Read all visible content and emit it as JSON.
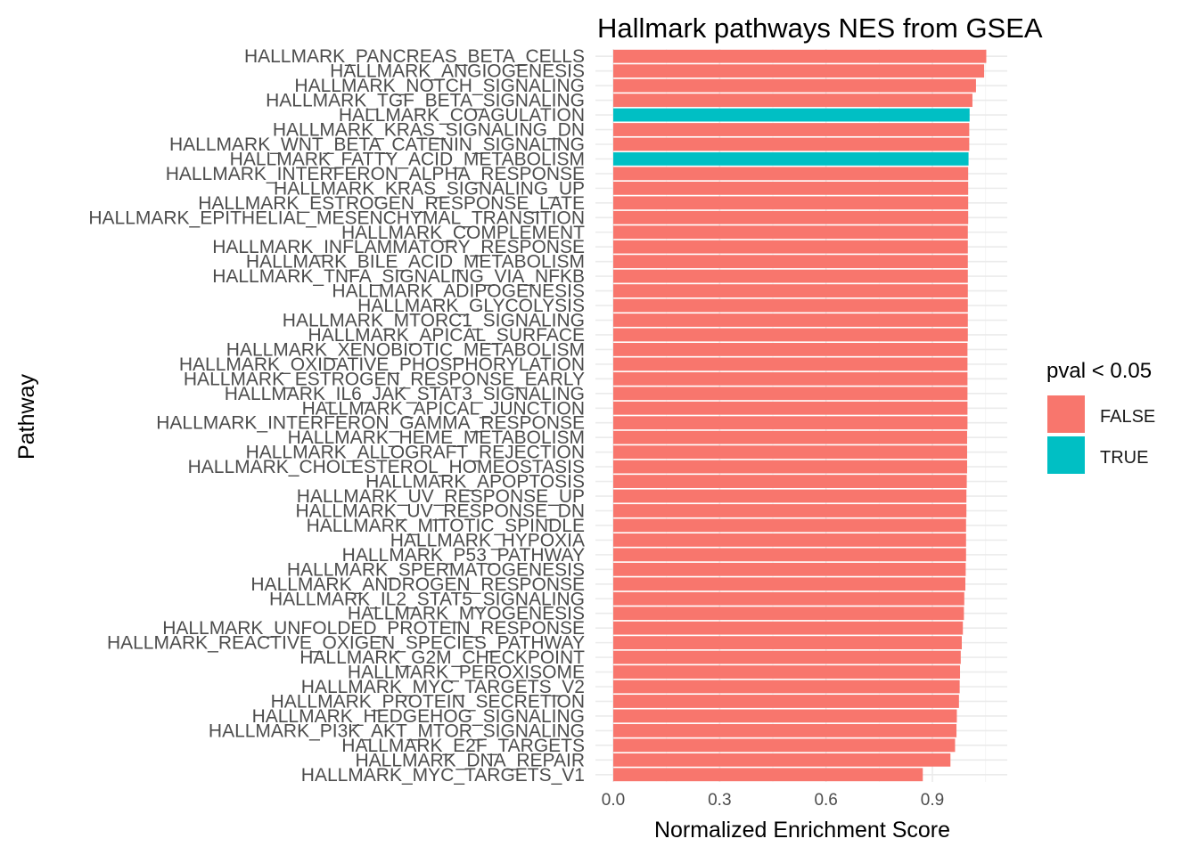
{
  "chart_data": {
    "type": "bar",
    "orientation": "horizontal",
    "title": "Hallmark pathways NES from GSEA",
    "xlabel": "Normalized Enrichment Score",
    "ylabel": "Pathway",
    "xlim": [
      0,
      1.1
    ],
    "xticks": [
      "0.0",
      "0.3",
      "0.6",
      "0.9"
    ],
    "grid": true,
    "legend": {
      "title": "pval < 0.05",
      "position": "right",
      "entries": [
        {
          "label": "FALSE",
          "color": "#F8766D"
        },
        {
          "label": "TRUE",
          "color": "#00BFC4"
        }
      ]
    },
    "categories": [
      "HALLMARK_PANCREAS_BETA_CELLS",
      "HALLMARK_ANGIOGENESIS",
      "HALLMARK_NOTCH_SIGNALING",
      "HALLMARK_TGF_BETA_SIGNALING",
      "HALLMARK_COAGULATION",
      "HALLMARK_KRAS_SIGNALING_DN",
      "HALLMARK_WNT_BETA_CATENIN_SIGNALING",
      "HALLMARK_FATTY_ACID_METABOLISM",
      "HALLMARK_INTERFERON_ALPHA_RESPONSE",
      "HALLMARK_KRAS_SIGNALING_UP",
      "HALLMARK_ESTROGEN_RESPONSE_LATE",
      "HALLMARK_EPITHELIAL_MESENCHYMAL_TRANSITION",
      "HALLMARK_COMPLEMENT",
      "HALLMARK_INFLAMMATORY_RESPONSE",
      "HALLMARK_BILE_ACID_METABOLISM",
      "HALLMARK_TNFA_SIGNALING_VIA_NFKB",
      "HALLMARK_ADIPOGENESIS",
      "HALLMARK_GLYCOLYSIS",
      "HALLMARK_MTORC1_SIGNALING",
      "HALLMARK_APICAL_SURFACE",
      "HALLMARK_XENOBIOTIC_METABOLISM",
      "HALLMARK_OXIDATIVE_PHOSPHORYLATION",
      "HALLMARK_ESTROGEN_RESPONSE_EARLY",
      "HALLMARK_IL6_JAK_STAT3_SIGNALING",
      "HALLMARK_APICAL_JUNCTION",
      "HALLMARK_INTERFERON_GAMMA_RESPONSE",
      "HALLMARK_HEME_METABOLISM",
      "HALLMARK_ALLOGRAFT_REJECTION",
      "HALLMARK_CHOLESTEROL_HOMEOSTASIS",
      "HALLMARK_APOPTOSIS",
      "HALLMARK_UV_RESPONSE_UP",
      "HALLMARK_UV_RESPONSE_DN",
      "HALLMARK_MITOTIC_SPINDLE",
      "HALLMARK_HYPOXIA",
      "HALLMARK_P53_PATHWAY",
      "HALLMARK_SPERMATOGENESIS",
      "HALLMARK_ANDROGEN_RESPONSE",
      "HALLMARK_IL2_STAT5_SIGNALING",
      "HALLMARK_MYOGENESIS",
      "HALLMARK_UNFOLDED_PROTEIN_RESPONSE",
      "HALLMARK_REACTIVE_OXIGEN_SPECIES_PATHWAY",
      "HALLMARK_G2M_CHECKPOINT",
      "HALLMARK_PEROXISOME",
      "HALLMARK_MYC_TARGETS_V2",
      "HALLMARK_PROTEIN_SECRETION",
      "HALLMARK_HEDGEHOG_SIGNALING",
      "HALLMARK_PI3K_AKT_MTOR_SIGNALING",
      "HALLMARK_E2F_TARGETS",
      "HALLMARK_DNA_REPAIR",
      "HALLMARK_MYC_TARGETS_V1"
    ],
    "values": [
      1.052,
      1.046,
      1.023,
      1.013,
      1.005,
      1.004,
      1.004,
      1.002,
      1.001,
      1.001,
      1.001,
      1.001,
      1.0,
      1.0,
      1.0,
      1.0,
      1.0,
      1.0,
      1.0,
      1.0,
      0.999,
      0.999,
      0.999,
      0.999,
      0.999,
      0.999,
      0.998,
      0.998,
      0.998,
      0.997,
      0.996,
      0.996,
      0.995,
      0.995,
      0.995,
      0.994,
      0.993,
      0.99,
      0.989,
      0.986,
      0.983,
      0.98,
      0.978,
      0.977,
      0.975,
      0.969,
      0.968,
      0.964,
      0.951,
      0.873
    ],
    "significant": [
      false,
      false,
      false,
      false,
      true,
      false,
      false,
      true,
      false,
      false,
      false,
      false,
      false,
      false,
      false,
      false,
      false,
      false,
      false,
      false,
      false,
      false,
      false,
      false,
      false,
      false,
      false,
      false,
      false,
      false,
      false,
      false,
      false,
      false,
      false,
      false,
      false,
      false,
      false,
      false,
      false,
      false,
      false,
      false,
      false,
      false,
      false,
      false,
      false,
      false
    ]
  }
}
